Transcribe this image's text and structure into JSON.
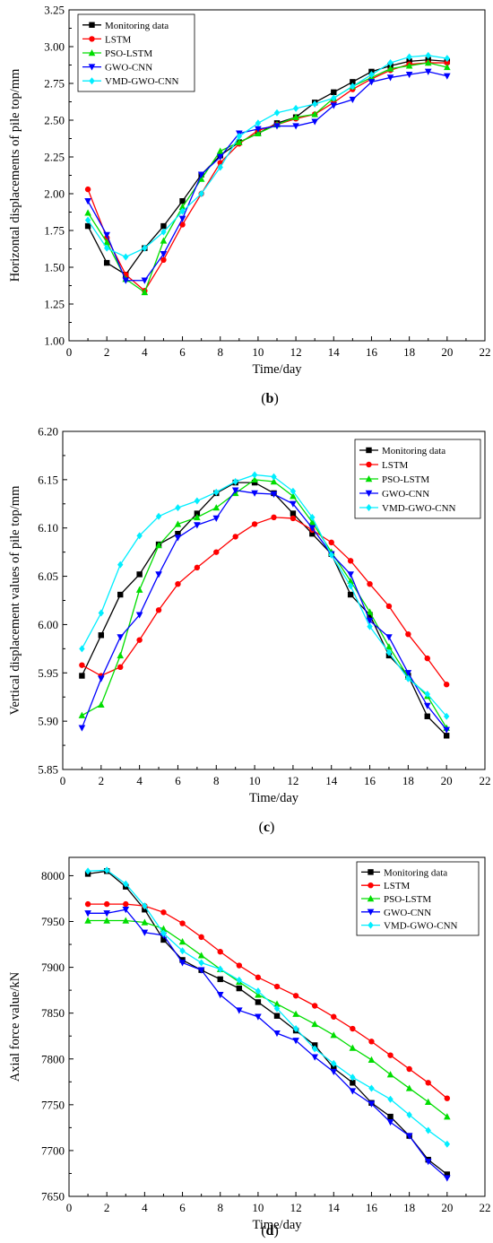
{
  "chart_data": [
    {
      "type": "line",
      "caption_letter": "b",
      "xlabel": "Time/day",
      "ylabel": "Horizontal displacements of pile top/mm",
      "xlim": [
        0,
        22
      ],
      "ylim": [
        1.0,
        3.25
      ],
      "xticks": [
        0,
        2,
        4,
        6,
        8,
        10,
        12,
        14,
        16,
        18,
        20,
        22
      ],
      "yticks": [
        "1.00",
        "1.25",
        "1.50",
        "1.75",
        "2.00",
        "2.25",
        "2.50",
        "2.75",
        "3.00",
        "3.25"
      ],
      "legend_position": "top-left",
      "x": [
        1,
        2,
        3,
        4,
        5,
        6,
        7,
        8,
        9,
        10,
        11,
        12,
        13,
        14,
        15,
        16,
        17,
        18,
        19,
        20
      ],
      "series": [
        {
          "name": "Monitoring data",
          "color": "#000000",
          "marker": "square",
          "values": [
            1.78,
            1.53,
            1.45,
            1.63,
            1.78,
            1.95,
            2.13,
            2.26,
            2.35,
            2.41,
            2.48,
            2.52,
            2.62,
            2.69,
            2.76,
            2.83,
            2.87,
            2.9,
            2.91,
            2.9
          ]
        },
        {
          "name": "LSTM",
          "color": "#ff0000",
          "marker": "circle",
          "values": [
            2.03,
            1.7,
            1.45,
            1.34,
            1.55,
            1.79,
            2.0,
            2.21,
            2.34,
            2.43,
            2.47,
            2.51,
            2.54,
            2.62,
            2.71,
            2.78,
            2.84,
            2.88,
            2.89,
            2.89
          ]
        },
        {
          "name": "PSO-LSTM",
          "color": "#00dd00",
          "marker": "triangle-up",
          "values": [
            1.87,
            1.67,
            1.42,
            1.33,
            1.68,
            1.91,
            2.1,
            2.29,
            2.35,
            2.41,
            2.47,
            2.52,
            2.54,
            2.65,
            2.73,
            2.79,
            2.85,
            2.87,
            2.89,
            2.86
          ]
        },
        {
          "name": "GWO-CNN",
          "color": "#0000ff",
          "marker": "triangle-down",
          "values": [
            1.95,
            1.72,
            1.41,
            1.41,
            1.59,
            1.83,
            2.13,
            2.25,
            2.41,
            2.44,
            2.46,
            2.46,
            2.49,
            2.6,
            2.64,
            2.76,
            2.79,
            2.81,
            2.83,
            2.8
          ]
        },
        {
          "name": "VMD-GWO-CNN",
          "color": "#00eeff",
          "marker": "diamond",
          "values": [
            1.82,
            1.63,
            1.57,
            1.63,
            1.74,
            1.88,
            2.0,
            2.18,
            2.39,
            2.48,
            2.55,
            2.58,
            2.61,
            2.65,
            2.73,
            2.81,
            2.89,
            2.93,
            2.94,
            2.92
          ]
        }
      ]
    },
    {
      "type": "line",
      "caption_letter": "c",
      "xlabel": "Time/day",
      "ylabel": "Vertical displacement values of pile top/mm",
      "xlim": [
        0,
        22
      ],
      "ylim": [
        5.85,
        6.2
      ],
      "xticks": [
        0,
        2,
        4,
        6,
        8,
        10,
        12,
        14,
        16,
        18,
        20,
        22
      ],
      "yticks": [
        "5.85",
        "5.90",
        "5.95",
        "6.00",
        "6.05",
        "6.10",
        "6.15",
        "6.20"
      ],
      "legend_position": "top-right",
      "x": [
        1,
        2,
        3,
        4,
        5,
        6,
        7,
        8,
        9,
        10,
        11,
        12,
        13,
        14,
        15,
        16,
        17,
        18,
        19,
        20
      ],
      "series": [
        {
          "name": "Monitoring data",
          "color": "#000000",
          "marker": "square",
          "values": [
            5.947,
            5.989,
            6.031,
            6.052,
            6.083,
            6.094,
            6.115,
            6.136,
            6.147,
            6.147,
            6.136,
            6.115,
            6.094,
            6.073,
            6.031,
            6.01,
            5.968,
            5.947,
            5.905,
            5.885
          ]
        },
        {
          "name": "LSTM",
          "color": "#ff0000",
          "marker": "circle",
          "values": [
            5.958,
            5.947,
            5.956,
            5.984,
            6.015,
            6.042,
            6.059,
            6.075,
            6.091,
            6.104,
            6.111,
            6.11,
            6.098,
            6.085,
            6.066,
            6.042,
            6.019,
            5.99,
            5.965,
            5.938
          ]
        },
        {
          "name": "PSO-LSTM",
          "color": "#00dd00",
          "marker": "triangle-up",
          "values": [
            5.906,
            5.917,
            5.968,
            6.036,
            6.082,
            6.104,
            6.111,
            6.121,
            6.136,
            6.15,
            6.148,
            6.133,
            6.106,
            6.075,
            6.045,
            6.013,
            5.977,
            5.946,
            5.926,
            5.893
          ]
        },
        {
          "name": "GWO-CNN",
          "color": "#0000ff",
          "marker": "triangle-down",
          "values": [
            5.893,
            5.944,
            5.987,
            6.01,
            6.052,
            6.09,
            6.103,
            6.11,
            6.139,
            6.136,
            6.135,
            6.125,
            6.1,
            6.073,
            6.052,
            6.004,
            5.987,
            5.95,
            5.916,
            5.891
          ]
        },
        {
          "name": "VMD-GWO-CNN",
          "color": "#00eeff",
          "marker": "diamond",
          "values": [
            5.975,
            6.012,
            6.062,
            6.092,
            6.112,
            6.121,
            6.128,
            6.137,
            6.148,
            6.155,
            6.153,
            6.138,
            6.111,
            6.072,
            6.04,
            5.998,
            5.971,
            5.944,
            5.928,
            5.905
          ]
        }
      ]
    },
    {
      "type": "line",
      "caption_letter": "d",
      "xlabel": "Time/day",
      "ylabel": "Axial force value/kN",
      "xlim": [
        0,
        22
      ],
      "ylim": [
        7650,
        8020
      ],
      "xticks": [
        0,
        2,
        4,
        6,
        8,
        10,
        12,
        14,
        16,
        18,
        20,
        22
      ],
      "yticks": [
        "7650",
        "7700",
        "7750",
        "7800",
        "7850",
        "7900",
        "7950",
        "8000"
      ],
      "legend_position": "top-right",
      "x": [
        1,
        2,
        3,
        4,
        5,
        6,
        7,
        8,
        9,
        10,
        11,
        12,
        13,
        14,
        15,
        16,
        17,
        18,
        19,
        20
      ],
      "series": [
        {
          "name": "Monitoring data",
          "color": "#000000",
          "marker": "square",
          "values": [
            8002,
            8005,
            7988,
            7963,
            7930,
            7908,
            7897,
            7887,
            7877,
            7862,
            7847,
            7831,
            7815,
            7790,
            7774,
            7752,
            7737,
            7716,
            7690,
            7674
          ]
        },
        {
          "name": "LSTM",
          "color": "#ff0000",
          "marker": "circle",
          "values": [
            7969,
            7969,
            7969,
            7967,
            7960,
            7948,
            7933,
            7917,
            7902,
            7889,
            7879,
            7869,
            7858,
            7846,
            7833,
            7819,
            7804,
            7789,
            7774,
            7757
          ]
        },
        {
          "name": "PSO-LSTM",
          "color": "#00dd00",
          "marker": "triangle-up",
          "values": [
            7951,
            7951,
            7951,
            7949,
            7942,
            7928,
            7913,
            7898,
            7884,
            7870,
            7860,
            7849,
            7838,
            7826,
            7812,
            7799,
            7783,
            7768,
            7753,
            7737
          ]
        },
        {
          "name": "GWO-CNN",
          "color": "#0000ff",
          "marker": "triangle-down",
          "values": [
            7959,
            7959,
            7963,
            7938,
            7935,
            7905,
            7897,
            7870,
            7853,
            7846,
            7828,
            7820,
            7802,
            7786,
            7765,
            7751,
            7731,
            7716,
            7688,
            7670
          ]
        },
        {
          "name": "VMD-GWO-CNN",
          "color": "#00eeff",
          "marker": "diamond",
          "values": [
            8005,
            8006,
            7991,
            7967,
            7937,
            7918,
            7905,
            7898,
            7886,
            7874,
            7855,
            7833,
            7811,
            7795,
            7780,
            7768,
            7756,
            7739,
            7722,
            7707
          ]
        }
      ]
    }
  ]
}
